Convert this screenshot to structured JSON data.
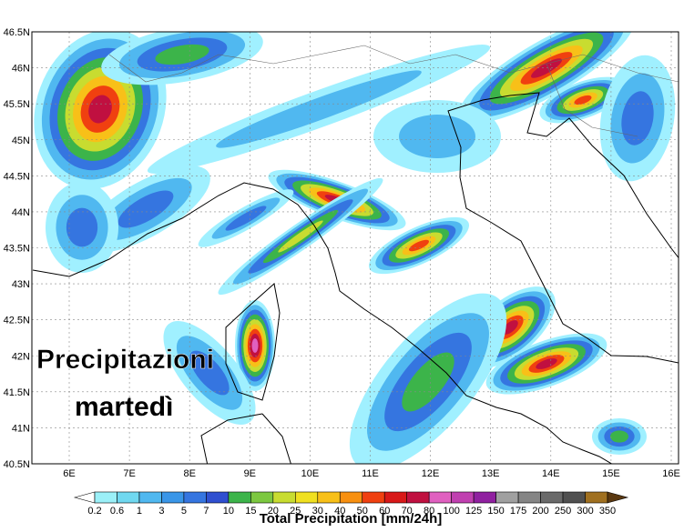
{
  "map": {
    "lat_labels": [
      "46.5N",
      "46N",
      "45.5N",
      "45N",
      "44.5N",
      "44N",
      "43.5N",
      "43N",
      "42.5N",
      "42N",
      "41.5N",
      "41N",
      "40.5N"
    ],
    "lon_labels": [
      "6E",
      "7E",
      "8E",
      "9E",
      "10E",
      "11E",
      "12E",
      "13E",
      "14E",
      "15E",
      "16E"
    ],
    "overlay": {
      "lines": [
        "Precipitazioni",
        "martedì"
      ]
    },
    "colorbar": {
      "labels": [
        "0.2",
        "0.6",
        "1",
        "3",
        "5",
        "7",
        "10",
        "15",
        "20",
        "25",
        "30",
        "40",
        "50",
        "60",
        "70",
        "80",
        "100",
        "125",
        "150",
        "175",
        "200",
        "250",
        "300",
        "350"
      ],
      "title": "Total Precipitation [mm/24h]"
    }
  }
}
